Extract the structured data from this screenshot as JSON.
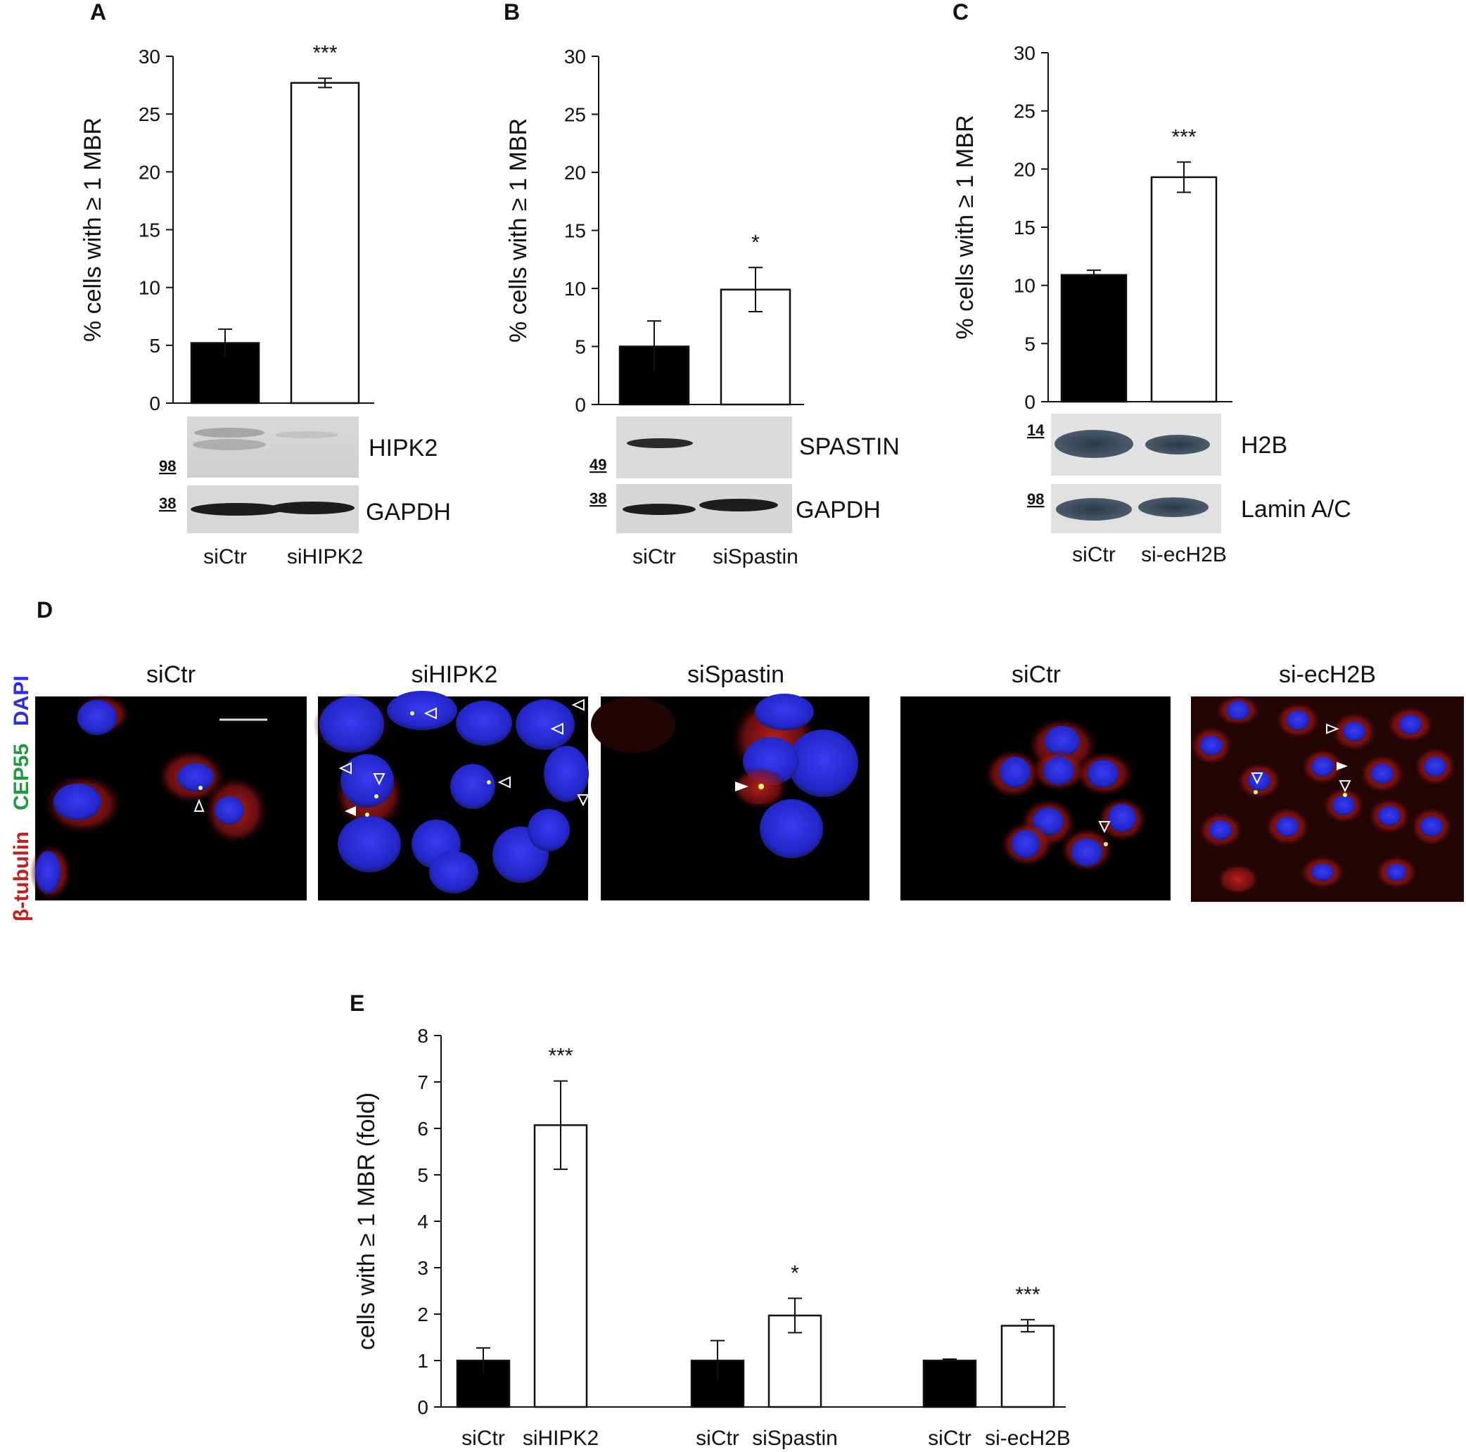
{
  "chart_data": [
    {
      "type": "bar",
      "panel": "A",
      "categories": [
        "siCtr",
        "siHIPK2"
      ],
      "values": [
        5.2,
        27.7
      ],
      "errors": [
        1.2,
        0.4
      ],
      "fills": [
        "#000000",
        "#ffffff"
      ],
      "significance": [
        "",
        "***"
      ],
      "ylabel": "% cells with ≥ 1 MBR",
      "ylim": [
        0,
        30
      ],
      "yticks": [
        0,
        5,
        10,
        15,
        20,
        25,
        30
      ],
      "grid": false
    },
    {
      "type": "bar",
      "panel": "B",
      "categories": [
        "siCtr",
        "siSpastin"
      ],
      "values": [
        5.0,
        9.9
      ],
      "errors": [
        2.2,
        1.9
      ],
      "fills": [
        "#000000",
        "#ffffff"
      ],
      "significance": [
        "",
        "*"
      ],
      "ylabel": "% cells with ≥ 1 MBR",
      "ylim": [
        0,
        30
      ],
      "yticks": [
        0,
        5,
        10,
        15,
        20,
        25,
        30
      ],
      "grid": false
    },
    {
      "type": "bar",
      "panel": "C",
      "categories": [
        "siCtr",
        "si-ecH2B"
      ],
      "values": [
        10.9,
        19.3
      ],
      "errors": [
        0.4,
        1.3
      ],
      "fills": [
        "#000000",
        "#ffffff"
      ],
      "significance": [
        "",
        "***"
      ],
      "ylabel": "% cells with ≥ 1 MBR",
      "ylim": [
        0,
        30
      ],
      "yticks": [
        0,
        5,
        10,
        15,
        20,
        25,
        30
      ],
      "grid": false
    },
    {
      "type": "bar",
      "panel": "E",
      "categories": [
        "siCtr",
        "siHIPK2",
        "siCtr",
        "siSpastin",
        "siCtr",
        "si-ecH2B"
      ],
      "values": [
        1.0,
        6.07,
        1.0,
        1.97,
        1.0,
        1.75
      ],
      "errors": [
        0.27,
        0.95,
        0.43,
        0.37,
        0.03,
        0.13
      ],
      "fills": [
        "#000000",
        "#ffffff",
        "#000000",
        "#ffffff",
        "#000000",
        "#ffffff"
      ],
      "significance": [
        "",
        "***",
        "",
        "*",
        "",
        "***"
      ],
      "ylabel": "cells with ≥ 1 MBR (fold)",
      "ylim": [
        0,
        8
      ],
      "yticks": [
        0,
        1,
        2,
        3,
        4,
        5,
        6,
        7,
        8
      ],
      "grid": false
    }
  ],
  "panels": {
    "a": "A",
    "b": "B",
    "c": "C",
    "d": "D",
    "e": "E"
  },
  "blots": {
    "a": {
      "top_label": "HIPK2",
      "top_mw": "98",
      "bottom_label": "GAPDH",
      "bottom_mw": "38"
    },
    "b": {
      "top_label": "SPASTIN",
      "top_mw": "49",
      "bottom_label": "GAPDH",
      "bottom_mw": "38"
    },
    "c": {
      "top_label": "H2B",
      "top_mw": "14",
      "bottom_label": "Lamin A/C",
      "bottom_mw": "98"
    }
  },
  "micrographs": {
    "titles": [
      "siCtr",
      "siHIPK2",
      "siSpastin",
      "siCtr",
      "si-ecH2B"
    ],
    "stain_labels": {
      "tubulin": "β-tubulin",
      "cep55": "CEP55",
      "dapi": "DAPI"
    }
  },
  "colors": {
    "dapi": "#2a2ee0",
    "tubulin": "#c0201e",
    "cep55": "#1f9a3c",
    "background": "#000000"
  }
}
